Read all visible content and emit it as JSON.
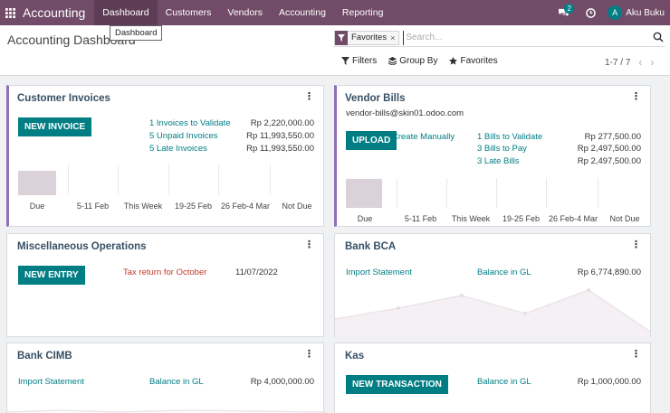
{
  "navbar": {
    "brand": "Accounting",
    "menu": [
      "Dashboard",
      "Customers",
      "Vendors",
      "Accounting",
      "Reporting"
    ],
    "chat_count": "2",
    "avatar_letter": "A",
    "user_name": "Aku Buku"
  },
  "tooltip": "Dashboard",
  "control_panel": {
    "title": "Accounting Dashboard",
    "facet": "Favorites",
    "search_placeholder": "Search...",
    "filters_label": "Filters",
    "group_by_label": "Group By",
    "favorites_label": "Favorites",
    "pager": "1-7 / 7"
  },
  "customer_invoices": {
    "title": "Customer Invoices",
    "button": "NEW INVOICE",
    "rows": [
      {
        "label": "1 Invoices to Validate",
        "amount": "Rp 2,220,000.00"
      },
      {
        "label": "5 Unpaid Invoices",
        "amount": "Rp 11,993,550.00"
      },
      {
        "label": "5 Late Invoices",
        "amount": "Rp 11,993,550.00"
      }
    ],
    "chart_labels": [
      "Due",
      "5-11 Feb",
      "This Week",
      "19-25 Feb",
      "26 Feb-4 Mar",
      "Not Due"
    ]
  },
  "vendor_bills": {
    "title": "Vendor Bills",
    "email": "vendor-bills@skin01.odoo.com",
    "button": "UPLOAD",
    "create_manually": "Create Manually",
    "rows": [
      {
        "label": "1 Bills to Validate",
        "amount": "Rp 277,500.00"
      },
      {
        "label": "3 Bills to Pay",
        "amount": "Rp 2,497,500.00"
      },
      {
        "label": "3 Late Bills",
        "amount": "Rp 2,497,500.00"
      }
    ],
    "chart_labels": [
      "Due",
      "5-11 Feb",
      "This Week",
      "19-25 Feb",
      "26 Feb-4 Mar",
      "Not Due"
    ]
  },
  "misc_operations": {
    "title": "Miscellaneous Operations",
    "button": "NEW ENTRY",
    "activity": "Tax return for October",
    "activity_date": "11/07/2022"
  },
  "bank_bca": {
    "title": "Bank BCA",
    "import_label": "Import Statement",
    "balance_label": "Balance in GL",
    "balance": "Rp 6,774,890.00"
  },
  "bank_cimb": {
    "title": "Bank CIMB",
    "import_label": "Import Statement",
    "balance_label": "Balance in GL",
    "balance": "Rp 4,000,000.00"
  },
  "kas": {
    "title": "Kas",
    "button": "NEW TRANSACTION",
    "balance_label": "Balance in GL",
    "balance": "Rp 1,000,000.00"
  },
  "colors": {
    "navbar": "#714b67",
    "primary": "#017e84",
    "bar": "#dbd1d9",
    "accent_border": "#8f6fb8"
  }
}
